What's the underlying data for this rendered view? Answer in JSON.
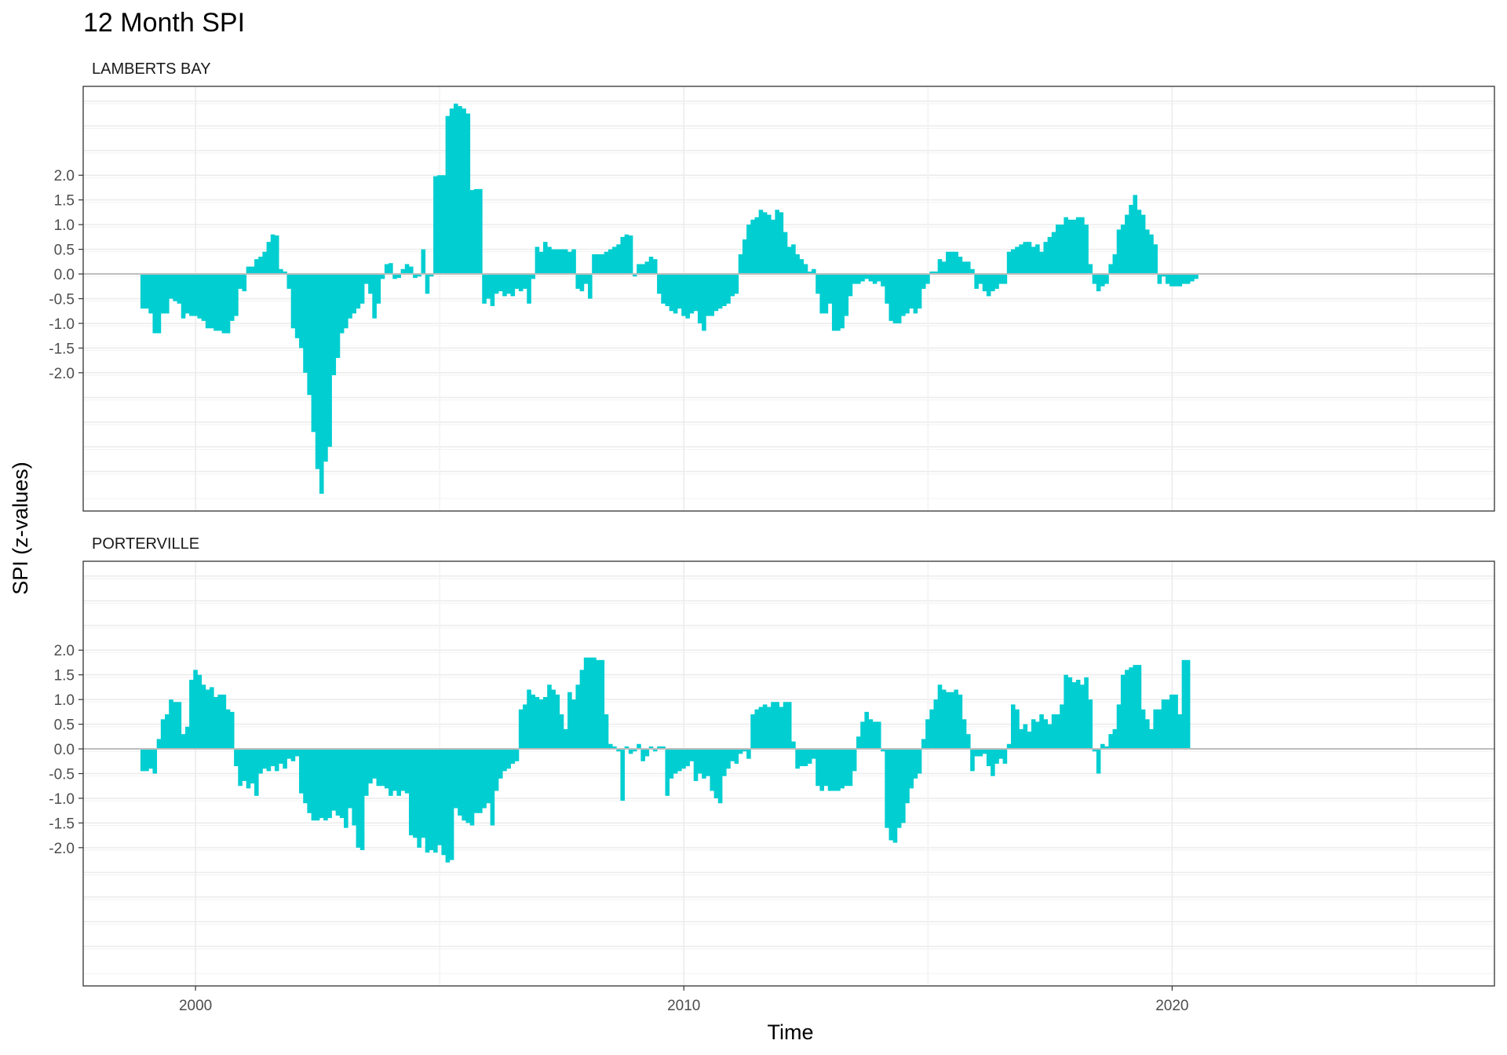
{
  "colors": {
    "bar": "#00CED1",
    "zero_line": "#BEBEBE",
    "grid_major": "#EBEBEB",
    "grid_minor": "#F2F2F2",
    "panel_border": "#333333"
  },
  "chart_data": {
    "type": "bar",
    "title": "12 Month SPI",
    "xlabel": "Time",
    "ylabel": "SPI (z-values)",
    "xlim": [
      1997.7,
      2026.6
    ],
    "x_ticks": [
      2000,
      2010,
      2020
    ],
    "x_tick_labels": [
      "2000",
      "2010",
      "2020"
    ],
    "ylim": [
      -4.8,
      3.8
    ],
    "y_ticks": [
      2.0,
      1.5,
      1.0,
      0.5,
      0.0,
      -0.5,
      -1.0,
      -1.5,
      -2.0
    ],
    "y_tick_labels": [
      "2.0",
      "1.5",
      "1.0",
      "0.5",
      "0.0",
      "-0.5",
      "-1.0",
      "-1.5",
      "-2.0"
    ],
    "grid": true,
    "legend": "none",
    "panels": [
      {
        "name": "LAMBERTS BAY",
        "start": 1998.917,
        "step": 0.0833,
        "values": [
          -0.7,
          -0.7,
          -0.8,
          -1.2,
          -1.2,
          -0.8,
          -0.8,
          -0.5,
          -0.55,
          -0.6,
          -0.9,
          -0.8,
          -0.85,
          -0.85,
          -0.9,
          -0.95,
          -1.1,
          -1.1,
          -1.15,
          -1.15,
          -1.2,
          -1.2,
          -0.95,
          -0.85,
          -0.3,
          -0.35,
          0.15,
          0.15,
          0.3,
          0.35,
          0.45,
          0.65,
          0.8,
          0.78,
          0.1,
          0.05,
          -0.3,
          -1.1,
          -1.3,
          -1.5,
          -2.0,
          -2.45,
          -3.2,
          -3.95,
          -4.45,
          -3.8,
          -3.5,
          -2.05,
          -1.7,
          -1.2,
          -1.1,
          -0.9,
          -0.8,
          -0.7,
          -0.6,
          -0.2,
          -0.4,
          -0.9,
          -0.6,
          -0.1,
          0.2,
          0.22,
          -0.1,
          -0.08,
          0.1,
          0.2,
          0.15,
          -0.08,
          -0.05,
          0.5,
          -0.4,
          -0.05,
          1.98,
          2.0,
          2.0,
          3.2,
          3.35,
          3.45,
          3.4,
          3.35,
          3.25,
          1.7,
          1.72,
          1.72,
          -0.6,
          -0.5,
          -0.65,
          -0.4,
          -0.35,
          -0.45,
          -0.4,
          -0.45,
          -0.3,
          -0.35,
          -0.3,
          -0.6,
          -0.1,
          0.55,
          0.45,
          0.65,
          0.55,
          0.5,
          0.5,
          0.5,
          0.5,
          0.45,
          0.5,
          -0.3,
          -0.35,
          -0.2,
          -0.5,
          0.4,
          0.4,
          0.4,
          0.45,
          0.5,
          0.55,
          0.6,
          0.75,
          0.8,
          0.78,
          -0.05,
          0.2,
          0.2,
          0.25,
          0.35,
          0.3,
          -0.4,
          -0.6,
          -0.65,
          -0.75,
          -0.8,
          -0.7,
          -0.85,
          -0.9,
          -0.8,
          -0.75,
          -1.0,
          -1.15,
          -0.85,
          -0.85,
          -0.75,
          -0.7,
          -0.65,
          -0.6,
          -0.45,
          -0.4,
          0.4,
          0.7,
          1.0,
          1.1,
          1.15,
          1.3,
          1.25,
          1.2,
          1.1,
          1.3,
          1.25,
          0.85,
          0.55,
          0.6,
          0.4,
          0.3,
          0.2,
          0.05,
          0.1,
          -0.4,
          -0.8,
          -0.8,
          -0.6,
          -1.15,
          -1.15,
          -1.1,
          -0.85,
          -0.45,
          -0.2,
          -0.2,
          -0.15,
          -0.1,
          -0.15,
          -0.2,
          -0.15,
          -0.25,
          -0.6,
          -0.95,
          -1.0,
          -1.0,
          -0.85,
          -0.8,
          -0.7,
          -0.8,
          -0.7,
          -0.3,
          -0.2,
          0.05,
          0.05,
          0.3,
          0.25,
          0.45,
          0.45,
          0.45,
          0.35,
          0.25,
          0.25,
          0.1,
          -0.3,
          -0.2,
          -0.35,
          -0.45,
          -0.35,
          -0.3,
          -0.2,
          -0.2,
          0.45,
          0.5,
          0.55,
          0.6,
          0.65,
          0.65,
          0.55,
          0.6,
          0.45,
          0.65,
          0.75,
          0.85,
          1.0,
          1.0,
          1.15,
          1.1,
          1.1,
          1.15,
          1.15,
          1.0,
          0.2,
          -0.2,
          -0.35,
          -0.25,
          -0.2,
          0.2,
          0.4,
          0.9,
          1.0,
          1.2,
          1.4,
          1.6,
          1.3,
          1.2,
          0.9,
          0.8,
          0.6,
          -0.2,
          -0.05,
          -0.2,
          -0.25,
          -0.25,
          -0.25,
          -0.2,
          -0.2,
          -0.15,
          -0.1
        ]
      },
      {
        "name": "PORTERVILLE",
        "start": 1998.917,
        "step": 0.0833,
        "values": [
          -0.45,
          -0.45,
          -0.4,
          -0.5,
          0.2,
          0.6,
          0.7,
          1.0,
          0.95,
          0.95,
          0.3,
          0.45,
          1.4,
          1.6,
          1.5,
          1.3,
          1.2,
          1.25,
          1.05,
          1.1,
          1.1,
          0.8,
          0.75,
          -0.35,
          -0.75,
          -0.65,
          -0.8,
          -0.7,
          -0.95,
          -0.5,
          -0.4,
          -0.45,
          -0.35,
          -0.45,
          -0.3,
          -0.4,
          -0.2,
          -0.25,
          -0.15,
          -0.9,
          -1.1,
          -1.3,
          -1.45,
          -1.45,
          -1.4,
          -1.45,
          -1.4,
          -1.25,
          -1.35,
          -1.4,
          -1.6,
          -1.2,
          -1.55,
          -2.0,
          -2.05,
          -0.95,
          -0.7,
          -0.6,
          -0.75,
          -0.75,
          -0.8,
          -0.95,
          -0.85,
          -0.95,
          -0.85,
          -0.9,
          -1.75,
          -1.8,
          -2.0,
          -1.8,
          -2.1,
          -2.05,
          -2.1,
          -1.95,
          -2.15,
          -2.3,
          -2.25,
          -1.2,
          -1.35,
          -1.45,
          -1.5,
          -1.55,
          -1.3,
          -1.3,
          -1.2,
          -1.1,
          -1.55,
          -0.85,
          -0.6,
          -0.45,
          -0.4,
          -0.3,
          -0.25,
          0.8,
          0.9,
          1.2,
          1.1,
          1.05,
          1.0,
          1.05,
          1.3,
          1.2,
          1.1,
          0.7,
          0.4,
          1.15,
          1.0,
          1.3,
          1.6,
          1.85,
          1.85,
          1.85,
          1.8,
          1.8,
          0.7,
          0.1,
          0.05,
          -0.05,
          -1.05,
          0.05,
          -0.1,
          -0.05,
          0.1,
          -0.25,
          -0.15,
          0.05,
          -0.05,
          0.05,
          0.05,
          -0.95,
          -0.6,
          -0.5,
          -0.45,
          -0.4,
          -0.35,
          -0.25,
          -0.65,
          -0.5,
          -0.6,
          -0.55,
          -0.85,
          -1.0,
          -1.1,
          -0.55,
          -0.4,
          -0.25,
          -0.3,
          -0.1,
          -0.05,
          -0.2,
          0.7,
          0.8,
          0.85,
          0.9,
          0.85,
          0.95,
          0.95,
          0.85,
          0.95,
          0.95,
          0.15,
          -0.4,
          -0.35,
          -0.35,
          -0.3,
          -0.2,
          -0.75,
          -0.85,
          -0.75,
          -0.85,
          -0.85,
          -0.85,
          -0.8,
          -0.75,
          -0.75,
          -0.45,
          0.25,
          0.55,
          0.75,
          0.6,
          0.55,
          0.55,
          -0.05,
          -1.6,
          -1.85,
          -1.9,
          -1.6,
          -1.5,
          -1.1,
          -0.8,
          -0.6,
          -0.5,
          0.2,
          0.6,
          0.8,
          1.0,
          1.3,
          1.2,
          1.15,
          1.15,
          1.2,
          1.1,
          0.6,
          0.3,
          -0.45,
          -0.15,
          -0.15,
          -0.1,
          -0.35,
          -0.55,
          -0.3,
          -0.2,
          -0.3,
          0.1,
          0.9,
          0.8,
          0.4,
          0.5,
          0.35,
          0.6,
          0.55,
          0.7,
          0.6,
          0.5,
          0.7,
          0.7,
          0.9,
          1.5,
          1.45,
          1.35,
          1.4,
          1.3,
          1.45,
          1.0,
          -0.05,
          -0.5,
          0.1,
          0.05,
          0.3,
          0.4,
          0.9,
          1.5,
          1.6,
          1.65,
          1.7,
          1.7,
          0.8,
          0.6,
          0.4,
          0.8,
          0.8,
          1.0,
          1.0,
          1.1,
          1.1,
          0.7,
          1.8,
          1.8
        ]
      }
    ]
  }
}
